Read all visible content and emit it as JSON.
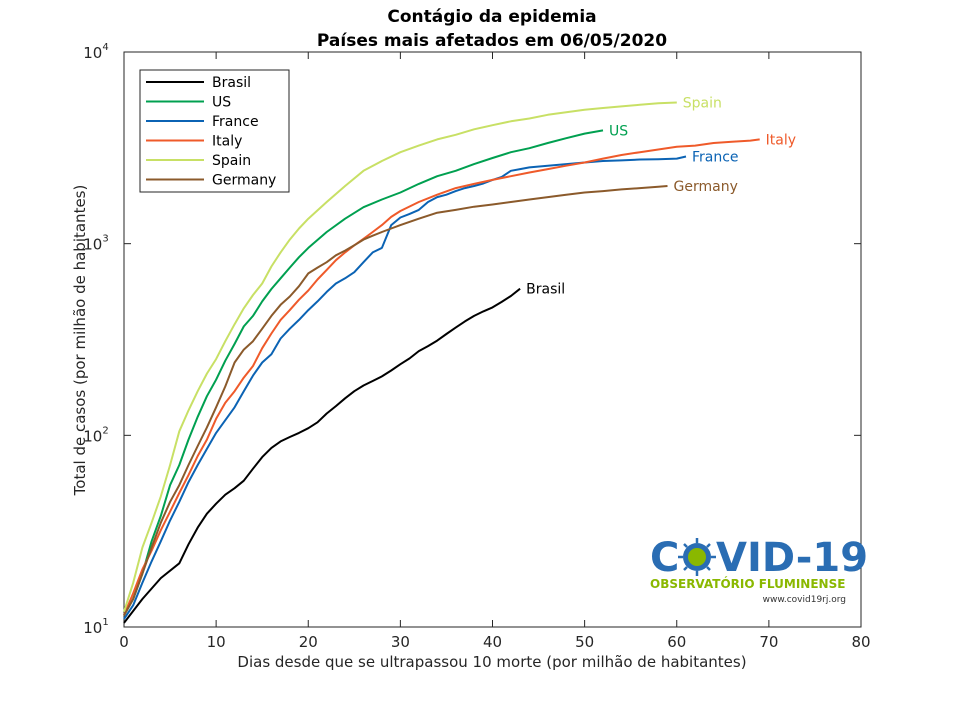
{
  "chart_data": {
    "type": "line",
    "title": "Contágio da epidemia",
    "subtitle": "Países mais afetados em 06/05/2020",
    "xlabel": "Dias desde que se ultrapassou 10 morte (por milhão de habitantes)",
    "ylabel": "Total de casos (por milhão de habitantes)",
    "xlim": [
      0,
      80
    ],
    "ylim": [
      10,
      10000
    ],
    "yscale": "log",
    "grid": false,
    "legend_position": "top-left",
    "xticks": [
      "0",
      "10",
      "20",
      "30",
      "40",
      "50",
      "60",
      "70",
      "80"
    ],
    "yticks": [
      {
        "base": "10",
        "exp": "1",
        "value": 10
      },
      {
        "base": "10",
        "exp": "2",
        "value": 100
      },
      {
        "base": "10",
        "exp": "3",
        "value": 1000
      },
      {
        "base": "10",
        "exp": "4",
        "value": 10000
      }
    ],
    "series": [
      {
        "name": "Brasil",
        "color": "#000000",
        "x": [
          0,
          2,
          4,
          6,
          7,
          8,
          9,
          10,
          11,
          12,
          13,
          14,
          15,
          16,
          17,
          18,
          19,
          20,
          21,
          22,
          23,
          24,
          25,
          26,
          27,
          28,
          29,
          30,
          31,
          32,
          33,
          34,
          35,
          36,
          37,
          38,
          39,
          40,
          41,
          42,
          43
        ],
        "y": [
          10.5,
          14,
          18,
          21.5,
          27,
          33,
          39,
          44,
          49,
          53,
          58,
          67,
          77,
          86,
          93,
          98,
          103,
          109,
          117,
          130,
          142,
          156,
          170,
          182,
          192,
          203,
          218,
          235,
          252,
          275,
          292,
          312,
          338,
          365,
          393,
          420,
          443,
          465,
          497,
          533,
          582
        ]
      },
      {
        "name": "US",
        "color": "#00a050",
        "x": [
          0,
          1,
          2,
          3,
          4,
          5,
          6,
          7,
          8,
          9,
          10,
          11,
          12,
          13,
          14,
          15,
          16,
          17,
          18,
          19,
          20,
          22,
          24,
          26,
          28,
          30,
          32,
          34,
          36,
          38,
          40,
          42,
          44,
          46,
          48,
          50,
          52
        ],
        "y": [
          11.5,
          14,
          19,
          28,
          38,
          55,
          70,
          95,
          125,
          160,
          195,
          245,
          300,
          370,
          420,
          500,
          580,
          660,
          750,
          850,
          950,
          1150,
          1350,
          1550,
          1700,
          1850,
          2050,
          2250,
          2400,
          2600,
          2800,
          3000,
          3150,
          3350,
          3550,
          3750,
          3900
        ]
      },
      {
        "name": "France",
        "color": "#0b63b4",
        "x": [
          0,
          1,
          2,
          3,
          4,
          5,
          6,
          7,
          8,
          9,
          10,
          11,
          12,
          13,
          14,
          15,
          16,
          17,
          18,
          19,
          20,
          21,
          22,
          23,
          24,
          25,
          26,
          27,
          28,
          29,
          30,
          31,
          32,
          33,
          34,
          35,
          36,
          37,
          38,
          39,
          40,
          41,
          42,
          43,
          44,
          46,
          48,
          50,
          52,
          54,
          56,
          58,
          60,
          61
        ],
        "y": [
          11,
          13,
          17,
          22,
          28,
          36,
          45,
          57,
          70,
          85,
          103,
          120,
          140,
          170,
          205,
          240,
          265,
          320,
          360,
          400,
          450,
          500,
          560,
          620,
          660,
          710,
          800,
          900,
          950,
          1250,
          1370,
          1430,
          1500,
          1650,
          1750,
          1800,
          1880,
          1950,
          2000,
          2060,
          2150,
          2230,
          2400,
          2450,
          2500,
          2550,
          2600,
          2650,
          2700,
          2720,
          2750,
          2760,
          2780,
          2850
        ]
      },
      {
        "name": "Italy",
        "color": "#ef5a2a",
        "x": [
          0,
          1,
          2,
          3,
          4,
          5,
          6,
          7,
          8,
          9,
          10,
          11,
          12,
          13,
          14,
          15,
          16,
          17,
          18,
          19,
          20,
          21,
          22,
          23,
          24,
          25,
          26,
          27,
          28,
          29,
          30,
          32,
          34,
          36,
          38,
          40,
          42,
          44,
          46,
          48,
          50,
          52,
          54,
          56,
          58,
          60,
          62,
          64,
          66,
          68,
          69
        ],
        "y": [
          11.5,
          15,
          20,
          25,
          32,
          40,
          50,
          62,
          78,
          95,
          122,
          148,
          170,
          200,
          230,
          285,
          340,
          400,
          450,
          510,
          570,
          650,
          730,
          820,
          900,
          980,
          1060,
          1150,
          1250,
          1380,
          1480,
          1650,
          1800,
          1950,
          2050,
          2150,
          2250,
          2350,
          2450,
          2550,
          2650,
          2780,
          2900,
          3000,
          3100,
          3200,
          3250,
          3350,
          3400,
          3450,
          3500
        ]
      },
      {
        "name": "Spain",
        "color": "#c8e065",
        "x": [
          0,
          1,
          2,
          3,
          4,
          5,
          6,
          7,
          8,
          9,
          10,
          11,
          12,
          13,
          14,
          15,
          16,
          17,
          18,
          19,
          20,
          22,
          24,
          26,
          28,
          30,
          32,
          34,
          36,
          38,
          40,
          42,
          44,
          46,
          48,
          50,
          52,
          54,
          56,
          58,
          60
        ],
        "y": [
          12,
          17,
          26,
          35,
          48,
          70,
          105,
          135,
          170,
          210,
          250,
          310,
          380,
          460,
          540,
          620,
          760,
          900,
          1050,
          1200,
          1350,
          1650,
          2000,
          2400,
          2700,
          3000,
          3250,
          3500,
          3700,
          3950,
          4150,
          4350,
          4500,
          4700,
          4850,
          5000,
          5100,
          5200,
          5300,
          5400,
          5450
        ]
      },
      {
        "name": "Germany",
        "color": "#8b5a2b",
        "x": [
          0,
          1,
          2,
          3,
          4,
          5,
          6,
          7,
          8,
          9,
          10,
          11,
          12,
          13,
          14,
          15,
          16,
          17,
          18,
          19,
          20,
          21,
          22,
          23,
          24,
          25,
          26,
          27,
          28,
          29,
          30,
          32,
          34,
          36,
          38,
          40,
          42,
          44,
          46,
          48,
          50,
          52,
          54,
          56,
          58,
          59
        ],
        "y": [
          11.5,
          14,
          19,
          26,
          35,
          45,
          55,
          70,
          88,
          110,
          140,
          180,
          240,
          280,
          310,
          360,
          420,
          480,
          530,
          600,
          700,
          750,
          800,
          870,
          920,
          980,
          1050,
          1100,
          1150,
          1200,
          1250,
          1350,
          1450,
          1500,
          1560,
          1600,
          1650,
          1700,
          1750,
          1800,
          1850,
          1880,
          1920,
          1950,
          1980,
          2000
        ]
      }
    ]
  },
  "logo": {
    "big_prefix": "C",
    "big_suffix": "VID-19",
    "subtitle": "OBSERVATÓRIO FLUMINENSE",
    "url": "www.covid19rj.org",
    "colors": {
      "blue": "#2a6db3",
      "green": "#8ab800"
    }
  }
}
